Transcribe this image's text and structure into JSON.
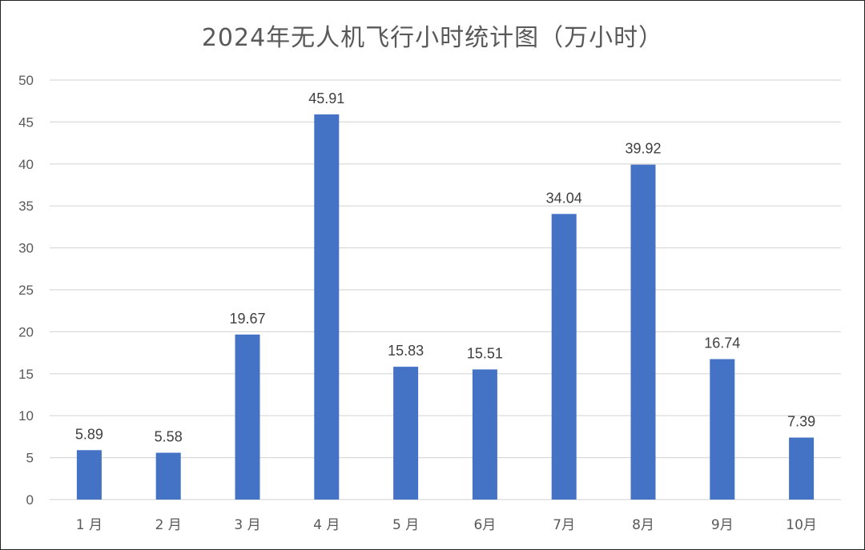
{
  "chart_data": {
    "type": "bar",
    "title": "2024年无人机飞行小时统计图（万小时）",
    "xlabel": "",
    "ylabel": "",
    "categories": [
      "1 月",
      "2 月",
      "3 月",
      "4 月",
      "5 月",
      "6月",
      "7月",
      "8月",
      "9月",
      "10月"
    ],
    "values": [
      5.89,
      5.58,
      19.67,
      45.91,
      15.83,
      15.51,
      34.04,
      39.92,
      16.74,
      7.39
    ],
    "value_labels": [
      "5.89",
      "5.58",
      "19.67",
      "45.91",
      "15.83",
      "15.51",
      "34.04",
      "39.92",
      "16.74",
      "7.39"
    ],
    "ylim": [
      0,
      50
    ],
    "yticks": [
      "0",
      "5",
      "10",
      "15",
      "20",
      "25",
      "30",
      "35",
      "40",
      "45",
      "50"
    ],
    "grid": true,
    "legend": "none",
    "bar_color": "#4472c4",
    "grid_color": "#d9d9d9"
  }
}
